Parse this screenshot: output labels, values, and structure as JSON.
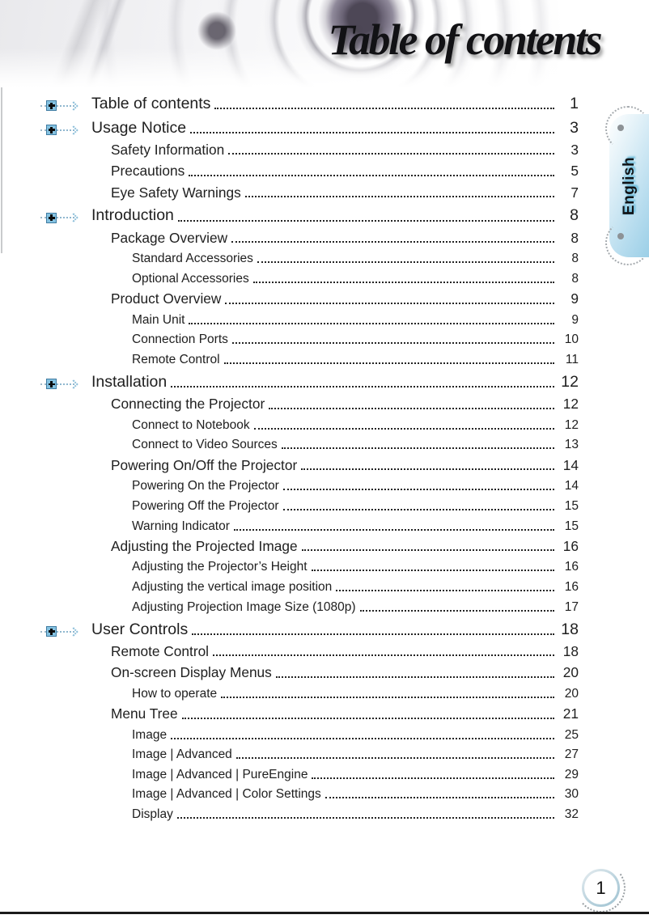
{
  "header": {
    "title": "Table of contents"
  },
  "side_tab": {
    "label": "English"
  },
  "footer": {
    "page_number": "1"
  },
  "icons": {
    "expand_plus": "expand-plus-icon",
    "dotted_arrow": "dotted-arrow-icon"
  },
  "colors": {
    "accent_blue": "#85c2e1",
    "tab_blue": "#9bcfe7",
    "text": "#202020",
    "leader_dots": "#232323",
    "dot_gray": "#8d9296"
  },
  "toc": {
    "items": [
      {
        "label": "Table of contents",
        "page": "1",
        "level": 1
      },
      {
        "label": "Usage Notice",
        "page": "3",
        "level": 1
      },
      {
        "label": "Safety Information",
        "page": "3",
        "level": 2
      },
      {
        "label": "Precautions",
        "page": "5",
        "level": 2
      },
      {
        "label": "Eye Safety Warnings",
        "page": "7",
        "level": 2
      },
      {
        "label": "Introduction",
        "page": "8",
        "level": 1
      },
      {
        "label": "Package Overview",
        "page": "8",
        "level": 2
      },
      {
        "label": "Standard Accessories",
        "page": "8",
        "level": 3
      },
      {
        "label": "Optional Accessories",
        "page": "8",
        "level": 3
      },
      {
        "label": "Product Overview",
        "page": "9",
        "level": 2
      },
      {
        "label": "Main Unit",
        "page": "9",
        "level": 3
      },
      {
        "label": "Connection Ports",
        "page": "10",
        "level": 3
      },
      {
        "label": "Remote Control",
        "page": "11",
        "level": 3
      },
      {
        "label": "Installation",
        "page": "12",
        "level": 1
      },
      {
        "label": "Connecting the Projector",
        "page": "12",
        "level": 2
      },
      {
        "label": "Connect to Notebook",
        "page": "12",
        "level": 3
      },
      {
        "label": "Connect to Video Sources",
        "page": "13",
        "level": 3
      },
      {
        "label": "Powering On/Off the Projector",
        "page": "14",
        "level": 2
      },
      {
        "label": "Powering On the Projector",
        "page": "14",
        "level": 3
      },
      {
        "label": "Powering Off the Projector",
        "page": "15",
        "level": 3
      },
      {
        "label": "Warning Indicator",
        "page": "15",
        "level": 3
      },
      {
        "label": "Adjusting the Projected Image",
        "page": "16",
        "level": 2
      },
      {
        "label": "Adjusting the Projector’s Height",
        "page": "16",
        "level": 3
      },
      {
        "label": "Adjusting the vertical image position",
        "page": "16",
        "level": 3
      },
      {
        "label": "Adjusting Projection Image Size (1080p)",
        "page": "17",
        "level": 3
      },
      {
        "label": "User Controls",
        "page": "18",
        "level": 1
      },
      {
        "label": "Remote Control",
        "page": "18",
        "level": 2
      },
      {
        "label": "On-screen Display Menus",
        "page": "20",
        "level": 2
      },
      {
        "label": "How to operate",
        "page": "20",
        "level": 3
      },
      {
        "label": "Menu Tree",
        "page": "21",
        "level": 2
      },
      {
        "label": "Image",
        "page": "25",
        "level": 3
      },
      {
        "label": "Image | Advanced",
        "page": "27",
        "level": 3
      },
      {
        "label": "Image | Advanced | PureEngine",
        "page": "29",
        "level": 3
      },
      {
        "label": "Image | Advanced | Color Settings",
        "page": "30",
        "level": 3
      },
      {
        "label": "Display",
        "page": "32",
        "level": 3
      }
    ]
  }
}
